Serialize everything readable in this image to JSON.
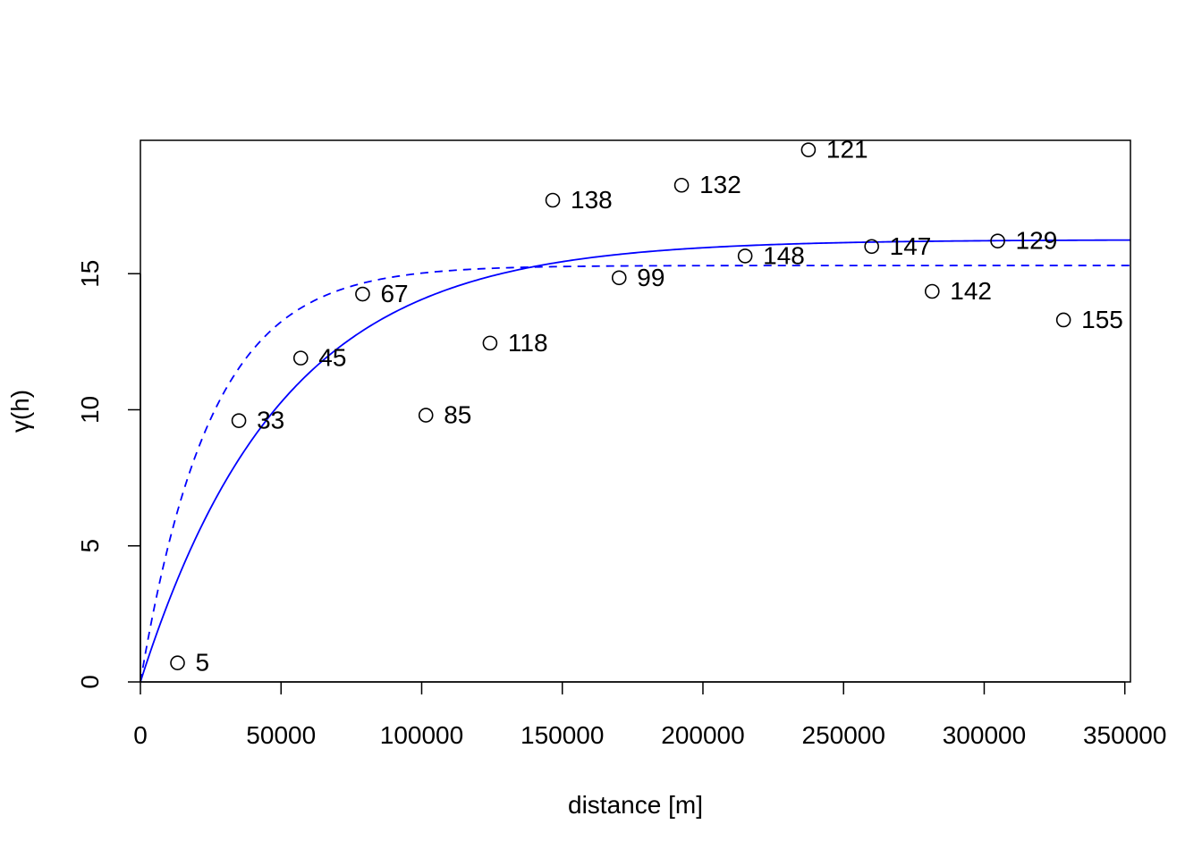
{
  "chart_data": {
    "type": "scatter",
    "title": "",
    "xlabel": "distance [m]",
    "ylabel": "γ(h)",
    "xlim": [
      0,
      352000
    ],
    "ylim": [
      0,
      19.9
    ],
    "x_ticks": [
      0,
      50000,
      100000,
      150000,
      200000,
      250000,
      300000,
      350000
    ],
    "x_tick_labels": [
      "0",
      "50000",
      "100000",
      "150000",
      "200000",
      "250000",
      "300000",
      "350000"
    ],
    "y_ticks": [
      0,
      5,
      10,
      15
    ],
    "y_tick_labels": [
      "0",
      "5",
      "10",
      "15"
    ],
    "grid": false,
    "legend": "none",
    "points": [
      {
        "x": 13200,
        "y": 0.7,
        "label": "5"
      },
      {
        "x": 35000,
        "y": 9.6,
        "label": "33"
      },
      {
        "x": 57000,
        "y": 11.9,
        "label": "45"
      },
      {
        "x": 79000,
        "y": 14.25,
        "label": "67"
      },
      {
        "x": 101500,
        "y": 9.8,
        "label": "85"
      },
      {
        "x": 124300,
        "y": 12.45,
        "label": "118"
      },
      {
        "x": 146600,
        "y": 17.7,
        "label": "138"
      },
      {
        "x": 170200,
        "y": 14.85,
        "label": "99"
      },
      {
        "x": 192400,
        "y": 18.25,
        "label": "132"
      },
      {
        "x": 215000,
        "y": 15.65,
        "label": "148"
      },
      {
        "x": 237500,
        "y": 19.55,
        "label": "121"
      },
      {
        "x": 260000,
        "y": 16.0,
        "label": "147"
      },
      {
        "x": 281500,
        "y": 14.35,
        "label": "142"
      },
      {
        "x": 304800,
        "y": 16.2,
        "label": "129"
      },
      {
        "x": 328200,
        "y": 13.3,
        "label": "155"
      }
    ],
    "curves": [
      {
        "model": "exponential",
        "sill": 16.25,
        "range": 50000,
        "style": "solid",
        "color": "#0000ff"
      },
      {
        "model": "exponential",
        "sill": 15.3,
        "range": 25000,
        "style": "dashed",
        "color": "#0000ff"
      }
    ],
    "point_color": "#000000"
  }
}
